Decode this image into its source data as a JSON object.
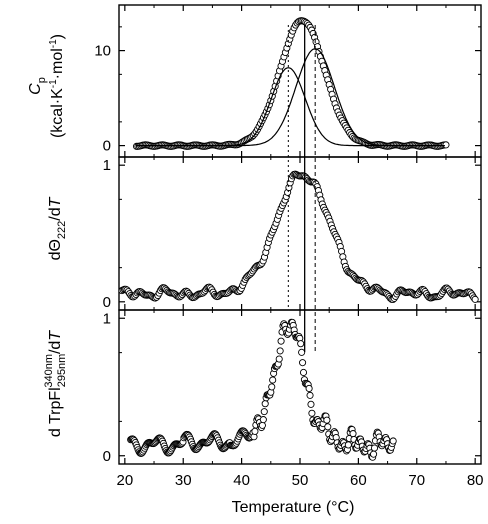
{
  "chart_data": {
    "type": "scatter",
    "xlabel": "Temperature (°C)",
    "xticks": [
      20,
      30,
      40,
      50,
      60,
      70,
      80
    ],
    "xlim": [
      19,
      81
    ],
    "panels": [
      {
        "id": "cp",
        "ylabel_main": "C",
        "ylabel_sub": "p",
        "ylabel_unit": "(kcal·K",
        "ylabel_unit_sup1": "-1",
        "ylabel_unit_mid": "·mol",
        "ylabel_unit_sup2": "-1",
        "ylabel_unit_end": ")",
        "ylim": [
          -1.2,
          14.8
        ],
        "yticks": [
          0,
          10
        ],
        "series": [
          {
            "kind": "scatter-gaussian",
            "amplitude": 13.2,
            "center": 50.4,
            "sigma": 3.8,
            "x_start": 22,
            "x_end": 75,
            "step": 0.25
          },
          {
            "kind": "line-gaussian",
            "amplitude": 8.2,
            "center": 48.0,
            "sigma": 2.9,
            "x_start": 22,
            "x_end": 75
          },
          {
            "kind": "line-gaussian",
            "amplitude": 10.2,
            "center": 52.6,
            "sigma": 3.3,
            "x_start": 22,
            "x_end": 75
          }
        ]
      },
      {
        "id": "cd",
        "ylabel_parts": [
          "dΘ",
          "222",
          "/d",
          "T"
        ],
        "ylim": [
          -0.06,
          1.06
        ],
        "yticks": [
          0,
          1
        ],
        "series": [
          {
            "kind": "scatter-gaussian-noise",
            "amplitude": 0.88,
            "center": 50.5,
            "sigma": 4.5,
            "baseline": 0.06,
            "noise": 0.035,
            "x_start": 19.5,
            "x_end": 80,
            "step": 0.22
          }
        ]
      },
      {
        "id": "trp",
        "ylabel_parts": [
          "d TrpFl",
          "295nm",
          "340nm",
          "/d",
          "T"
        ],
        "ylim": [
          -0.06,
          1.06
        ],
        "yticks": [
          0,
          1
        ],
        "series": [
          {
            "kind": "scatter-trp",
            "x_start": 21,
            "x_end": 66,
            "step": 0.16
          }
        ]
      }
    ],
    "reference_lines": [
      {
        "x": 48.0,
        "style": "dotted",
        "from_panel": "cp",
        "to_panel": "cd"
      },
      {
        "x": 50.8,
        "style": "solid",
        "from_panel": "cp",
        "to_panel": "trp"
      },
      {
        "x": 52.6,
        "style": "dashed",
        "from_panel": "cp",
        "to_panel": "trp"
      }
    ]
  }
}
